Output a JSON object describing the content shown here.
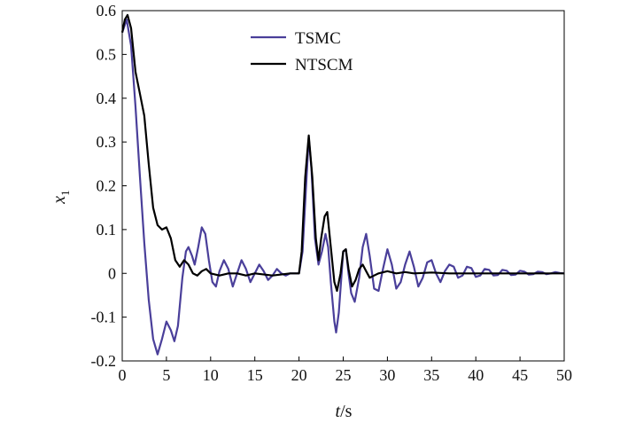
{
  "chart_data": {
    "type": "line",
    "xlabel": "t/s",
    "ylabel": "x1",
    "xlabel_parts": {
      "var": "t",
      "unit": "/s"
    },
    "ylabel_parts": {
      "var": "x",
      "sub": "1"
    },
    "xlim": [
      0,
      50
    ],
    "ylim": [
      -0.2,
      0.6
    ],
    "xticks": [
      0,
      5,
      10,
      15,
      20,
      25,
      30,
      35,
      40,
      45,
      50
    ],
    "yticks": [
      -0.2,
      -0.1,
      0,
      0.1,
      0.2,
      0.3,
      0.4,
      0.5,
      0.6
    ],
    "ytick_labels": [
      "-0.2",
      "-0.1",
      "0",
      "0.1",
      "0.2",
      "0.3",
      "0.4",
      "0.5",
      "0.6"
    ],
    "grid": false,
    "legend_position": "top-center",
    "series": [
      {
        "name": "TSMC",
        "color": "#4a3f9a",
        "points": [
          [
            0,
            0.55
          ],
          [
            0.5,
            0.58
          ],
          [
            1,
            0.52
          ],
          [
            1.5,
            0.38
          ],
          [
            2,
            0.22
          ],
          [
            2.5,
            0.07
          ],
          [
            3,
            -0.06
          ],
          [
            3.5,
            -0.15
          ],
          [
            4,
            -0.185
          ],
          [
            4.5,
            -0.15
          ],
          [
            5,
            -0.11
          ],
          [
            5.5,
            -0.13
          ],
          [
            5.9,
            -0.155
          ],
          [
            6.3,
            -0.12
          ],
          [
            6.8,
            -0.01
          ],
          [
            7.2,
            0.05
          ],
          [
            7.5,
            0.06
          ],
          [
            7.9,
            0.04
          ],
          [
            8.2,
            0.02
          ],
          [
            8.6,
            0.06
          ],
          [
            9,
            0.105
          ],
          [
            9.4,
            0.09
          ],
          [
            9.8,
            0.03
          ],
          [
            10.2,
            -0.02
          ],
          [
            10.6,
            -0.03
          ],
          [
            11,
            0.005
          ],
          [
            11.5,
            0.03
          ],
          [
            12,
            0.01
          ],
          [
            12.5,
            -0.03
          ],
          [
            13,
            0.0
          ],
          [
            13.5,
            0.03
          ],
          [
            14,
            0.01
          ],
          [
            14.5,
            -0.02
          ],
          [
            15,
            0.0
          ],
          [
            15.5,
            0.02
          ],
          [
            16,
            0.005
          ],
          [
            16.5,
            -0.015
          ],
          [
            17,
            -0.005
          ],
          [
            17.5,
            0.01
          ],
          [
            18,
            0.0
          ],
          [
            18.5,
            -0.005
          ],
          [
            19,
            0.0
          ],
          [
            20,
            0.0
          ],
          [
            20.4,
            0.05
          ],
          [
            20.8,
            0.2
          ],
          [
            21.1,
            0.31
          ],
          [
            21.4,
            0.24
          ],
          [
            21.8,
            0.08
          ],
          [
            22.2,
            0.02
          ],
          [
            22.6,
            0.05
          ],
          [
            23,
            0.09
          ],
          [
            23.3,
            0.06
          ],
          [
            23.6,
            -0.02
          ],
          [
            24,
            -0.11
          ],
          [
            24.2,
            -0.135
          ],
          [
            24.5,
            -0.09
          ],
          [
            25,
            0.05
          ],
          [
            25.3,
            0.055
          ],
          [
            25.6,
            0.0
          ],
          [
            25.9,
            -0.045
          ],
          [
            26.3,
            -0.065
          ],
          [
            26.8,
            -0.01
          ],
          [
            27.2,
            0.06
          ],
          [
            27.6,
            0.09
          ],
          [
            28,
            0.04
          ],
          [
            28.5,
            -0.035
          ],
          [
            29,
            -0.04
          ],
          [
            29.5,
            0.01
          ],
          [
            30,
            0.055
          ],
          [
            30.5,
            0.02
          ],
          [
            31,
            -0.035
          ],
          [
            31.5,
            -0.02
          ],
          [
            32,
            0.02
          ],
          [
            32.5,
            0.05
          ],
          [
            33,
            0.015
          ],
          [
            33.5,
            -0.03
          ],
          [
            34,
            -0.01
          ],
          [
            34.5,
            0.025
          ],
          [
            35,
            0.03
          ],
          [
            35.5,
            0.0
          ],
          [
            36,
            -0.02
          ],
          [
            36.5,
            0.005
          ],
          [
            37,
            0.02
          ],
          [
            37.5,
            0.015
          ],
          [
            38,
            -0.01
          ],
          [
            38.5,
            -0.005
          ],
          [
            39,
            0.015
          ],
          [
            39.5,
            0.012
          ],
          [
            40,
            -0.008
          ],
          [
            40.5,
            -0.005
          ],
          [
            41,
            0.01
          ],
          [
            41.5,
            0.008
          ],
          [
            42,
            -0.005
          ],
          [
            42.5,
            -0.004
          ],
          [
            43,
            0.008
          ],
          [
            43.5,
            0.006
          ],
          [
            44,
            -0.004
          ],
          [
            44.5,
            -0.003
          ],
          [
            45,
            0.006
          ],
          [
            45.5,
            0.004
          ],
          [
            46,
            -0.003
          ],
          [
            46.5,
            -0.002
          ],
          [
            47,
            0.004
          ],
          [
            47.5,
            0.003
          ],
          [
            48,
            -0.002
          ],
          [
            48.5,
            0.0
          ],
          [
            49,
            0.003
          ],
          [
            49.5,
            0.001
          ],
          [
            50,
            0.0
          ]
        ]
      },
      {
        "name": "NTSCM",
        "color": "#000000",
        "points": [
          [
            0,
            0.55
          ],
          [
            0.3,
            0.58
          ],
          [
            0.6,
            0.59
          ],
          [
            1,
            0.56
          ],
          [
            1.5,
            0.46
          ],
          [
            2,
            0.41
          ],
          [
            2.5,
            0.36
          ],
          [
            3,
            0.25
          ],
          [
            3.5,
            0.15
          ],
          [
            4,
            0.11
          ],
          [
            4.5,
            0.1
          ],
          [
            5,
            0.105
          ],
          [
            5.5,
            0.08
          ],
          [
            6,
            0.03
          ],
          [
            6.5,
            0.015
          ],
          [
            7,
            0.03
          ],
          [
            7.5,
            0.02
          ],
          [
            8,
            0.0
          ],
          [
            8.5,
            -0.005
          ],
          [
            9,
            0.005
          ],
          [
            9.5,
            0.01
          ],
          [
            10,
            0.0
          ],
          [
            11,
            -0.005
          ],
          [
            12,
            0.0
          ],
          [
            13,
            0.0
          ],
          [
            14,
            -0.005
          ],
          [
            15,
            0.0
          ],
          [
            17,
            -0.005
          ],
          [
            19,
            0.0
          ],
          [
            20,
            0.0
          ],
          [
            20.3,
            0.05
          ],
          [
            20.7,
            0.22
          ],
          [
            21.1,
            0.315
          ],
          [
            21.5,
            0.22
          ],
          [
            21.9,
            0.08
          ],
          [
            22.2,
            0.03
          ],
          [
            22.5,
            0.08
          ],
          [
            22.9,
            0.13
          ],
          [
            23.2,
            0.14
          ],
          [
            23.6,
            0.06
          ],
          [
            24,
            -0.02
          ],
          [
            24.3,
            -0.04
          ],
          [
            24.7,
            0.0
          ],
          [
            25,
            0.05
          ],
          [
            25.3,
            0.055
          ],
          [
            25.6,
            0.01
          ],
          [
            26,
            -0.03
          ],
          [
            26.4,
            -0.015
          ],
          [
            26.8,
            0.01
          ],
          [
            27.2,
            0.02
          ],
          [
            27.6,
            0.005
          ],
          [
            28,
            -0.01
          ],
          [
            28.5,
            -0.005
          ],
          [
            29,
            0.0
          ],
          [
            30,
            0.005
          ],
          [
            31,
            0.0
          ],
          [
            32,
            0.003
          ],
          [
            33,
            0.0
          ],
          [
            35,
            0.002
          ],
          [
            37,
            0.0
          ],
          [
            40,
            0.0
          ],
          [
            45,
            0.0
          ],
          [
            50,
            0.0
          ]
        ]
      }
    ]
  }
}
